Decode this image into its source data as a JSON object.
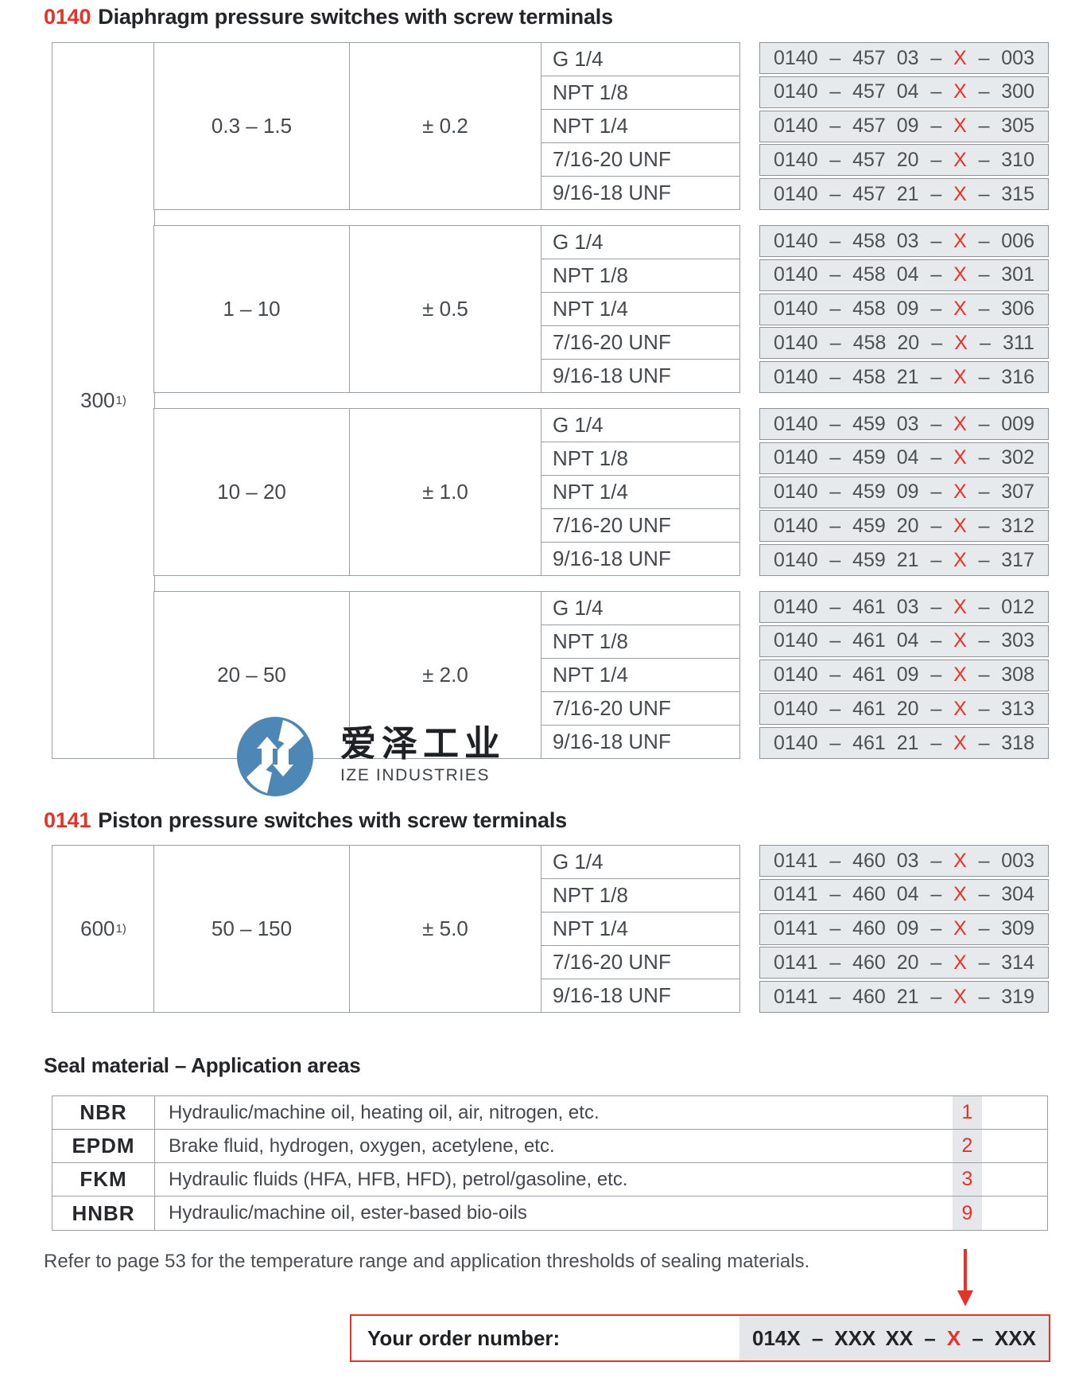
{
  "accent_red": "#e5332a",
  "threads": [
    "G 1/4",
    "NPT 1/8",
    "NPT 1/4",
    "7/16-20 UNF",
    "9/16-18 UNF"
  ],
  "order_tables": [
    {
      "code": "0140",
      "title": "Diaphragm pressure switches with screw terminals",
      "pressure_max": "300",
      "footnote_marker": "1)",
      "blocks": [
        {
          "range": "0.3 – 1.5",
          "tolerance": "± 0.2",
          "orders": [
            "0140 – 457 03 – X – 003",
            "0140 – 457 04 – X – 300",
            "0140 – 457 09 – X – 305",
            "0140 – 457 20 – X – 310",
            "0140 – 457 21 – X – 315"
          ]
        },
        {
          "range": "1 – 10",
          "tolerance": "± 0.5",
          "orders": [
            "0140 – 458 03 – X – 006",
            "0140 – 458 04 – X – 301",
            "0140 – 458 09 – X – 306",
            "0140 – 458 20 – X – 311",
            "0140 – 458 21 – X – 316"
          ]
        },
        {
          "range": "10 – 20",
          "tolerance": "± 1.0",
          "orders": [
            "0140 – 459 03 – X – 009",
            "0140 – 459 04 – X – 302",
            "0140 – 459 09 – X – 307",
            "0140 – 459 20 – X – 312",
            "0140 – 459 21 – X – 317"
          ]
        },
        {
          "range": "20 – 50",
          "tolerance": "± 2.0",
          "orders": [
            "0140 – 461 03 – X – 012",
            "0140 – 461 04 – X – 303",
            "0140 – 461 09 – X – 308",
            "0140 – 461 20 – X – 313",
            "0140 – 461 21 – X – 318"
          ]
        }
      ]
    },
    {
      "code": "0141",
      "title": "Piston pressure switches with screw terminals",
      "pressure_max": "600",
      "footnote_marker": "1)",
      "blocks": [
        {
          "range": "50 – 150",
          "tolerance": "± 5.0",
          "orders": [
            "0141 – 460 03 – X – 003",
            "0141 – 460 04 – X – 304",
            "0141 – 460 09 – X – 309",
            "0141 – 460 20 – X – 314",
            "0141 – 460 21 – X – 319"
          ]
        }
      ]
    }
  ],
  "watermark": {
    "cn": "爱泽工业",
    "en": "IZE INDUSTRIES"
  },
  "seal": {
    "title": "Seal material – Application areas",
    "rows": [
      {
        "code": "NBR",
        "desc": "Hydraulic/machine oil, heating oil, air, nitrogen, etc.",
        "num": "1"
      },
      {
        "code": "EPDM",
        "desc": "Brake fluid, hydrogen, oxygen, acetylene, etc.",
        "num": "2"
      },
      {
        "code": "FKM",
        "desc": "Hydraulic fluids (HFA, HFB, HFD), petrol/gasoline, etc.",
        "num": "3"
      },
      {
        "code": "HNBR",
        "desc": "Hydraulic/machine oil, ester-based bio-oils",
        "num": "9"
      }
    ],
    "note": "Refer to page 53 for the temperature range and application thresholds of sealing materials."
  },
  "order_box": {
    "label": "Your order number:",
    "value": "014X – XXX XX – X – XXX"
  }
}
